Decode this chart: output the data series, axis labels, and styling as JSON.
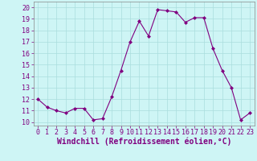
{
  "x": [
    0,
    1,
    2,
    3,
    4,
    5,
    6,
    7,
    8,
    9,
    10,
    11,
    12,
    13,
    14,
    15,
    16,
    17,
    18,
    19,
    20,
    21,
    22,
    23
  ],
  "y": [
    12,
    11.3,
    11,
    10.8,
    11.2,
    11.2,
    10.2,
    10.3,
    12.2,
    14.5,
    17.0,
    18.8,
    17.5,
    19.8,
    19.7,
    19.6,
    18.7,
    19.1,
    19.1,
    16.4,
    14.5,
    13.0,
    10.2,
    10.8
  ],
  "line_color": "#800080",
  "marker": "D",
  "marker_size": 2.0,
  "bg_color": "#cef5f5",
  "grid_color": "#aadddd",
  "xlabel": "Windchill (Refroidissement éolien,°C)",
  "xlabel_fontsize": 7,
  "yticks": [
    10,
    11,
    12,
    13,
    14,
    15,
    16,
    17,
    18,
    19,
    20
  ],
  "xticks": [
    0,
    1,
    2,
    3,
    4,
    5,
    6,
    7,
    8,
    9,
    10,
    11,
    12,
    13,
    14,
    15,
    16,
    17,
    18,
    19,
    20,
    21,
    22,
    23
  ],
  "ylim": [
    9.7,
    20.5
  ],
  "xlim": [
    -0.5,
    23.5
  ],
  "tick_fontsize": 6.0
}
